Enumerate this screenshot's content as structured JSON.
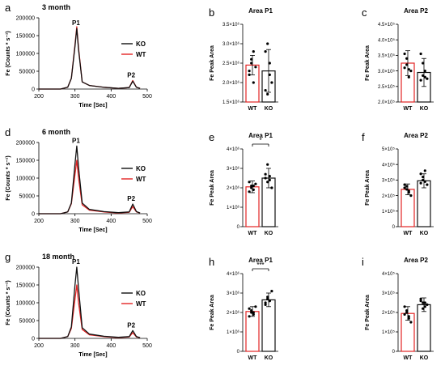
{
  "colors": {
    "wt": "#e32424",
    "ko": "#111111"
  },
  "chromatograms": {
    "xlabel": "Time [Sec]",
    "ylabel": "Fe (Counts * s⁻¹)",
    "xlim": [
      200,
      500
    ],
    "ylim": [
      0,
      200000
    ],
    "xticks": [
      "200",
      "300",
      "400",
      "500"
    ],
    "yticks": [
      "0",
      "50000",
      "100000",
      "150000",
      "200000"
    ],
    "peak_labels": [
      "P1",
      "P2"
    ],
    "legend": [
      "KO",
      "WT"
    ]
  },
  "bars": {
    "categories": [
      "WT",
      "KO"
    ],
    "ylabel": "Fe Peak Area"
  },
  "chart_data": [
    {
      "type": "line",
      "panel": "a",
      "title": "3 month",
      "x": [
        200,
        260,
        280,
        290,
        300,
        305,
        310,
        320,
        340,
        380,
        420,
        450,
        460,
        470,
        480
      ],
      "series": [
        {
          "name": "KO",
          "values": [
            0,
            0,
            5000,
            30000,
            120000,
            170000,
            110000,
            20000,
            10000,
            5000,
            2000,
            4000,
            22000,
            5000,
            2000
          ]
        },
        {
          "name": "WT",
          "values": [
            0,
            0,
            5000,
            30000,
            125000,
            175000,
            115000,
            20000,
            10000,
            5000,
            2000,
            4000,
            24000,
            5000,
            2000
          ]
        }
      ]
    },
    {
      "type": "bar",
      "panel": "b",
      "title": "Area P1",
      "categories": [
        "WT",
        "KO"
      ],
      "values": [
        2450000.0,
        2300000.0
      ],
      "errors": [
        250000.0,
        550000.0
      ],
      "ylim": [
        1500000.0,
        3500000.0
      ],
      "ytick_labels": [
        "1.5×10⁶",
        "2.0×10⁶",
        "2.5×10⁶",
        "3.0×10⁶",
        "3.5×10⁶"
      ],
      "points": [
        [
          2200000.0,
          2500000.0,
          2800000.0,
          2400000.0,
          2300000.0,
          2600000.0,
          2000000.0
        ],
        [
          2800000.0,
          3000000.0,
          2500000.0,
          2000000.0,
          1800000.0,
          1700000.0,
          2200000.0
        ]
      ]
    },
    {
      "type": "bar",
      "panel": "c",
      "title": "Area P2",
      "categories": [
        "WT",
        "KO"
      ],
      "values": [
        325000.0,
        295000.0
      ],
      "errors": [
        40000.0,
        45000.0
      ],
      "ylim": [
        200000.0,
        450000.0
      ],
      "ytick_labels": [
        "2.0×10⁵",
        "2.5×10⁵",
        "3.0×10⁵",
        "3.5×10⁵",
        "4.0×10⁵",
        "4.5×10⁵"
      ],
      "points": [
        [
          355000.0,
          340000.0,
          305000.0,
          300000.0,
          310000.0,
          320000.0,
          280000.0
        ],
        [
          355000.0,
          325000.0,
          300000.0,
          275000.0,
          270000.0,
          285000.0,
          280000.0
        ]
      ]
    },
    {
      "type": "line",
      "panel": "d",
      "title": "6 month",
      "x": [
        200,
        260,
        280,
        290,
        300,
        305,
        310,
        320,
        340,
        380,
        420,
        450,
        460,
        470,
        480
      ],
      "series": [
        {
          "name": "KO",
          "values": [
            0,
            0,
            5000,
            30000,
            140000,
            190000,
            130000,
            30000,
            12000,
            6000,
            3000,
            5000,
            27000,
            6000,
            2000
          ]
        },
        {
          "name": "WT",
          "values": [
            0,
            0,
            5000,
            28000,
            110000,
            150000,
            100000,
            25000,
            10000,
            5000,
            2000,
            4000,
            20000,
            5000,
            2000
          ]
        }
      ]
    },
    {
      "type": "bar",
      "panel": "e",
      "title": "Area P1",
      "categories": [
        "WT",
        "KO"
      ],
      "values": [
        2050000.0,
        2500000.0
      ],
      "errors": [
        300000.0,
        500000.0
      ],
      "ylim": [
        0,
        4000000.0
      ],
      "ytick_labels": [
        "0",
        "1×10⁶",
        "2×10⁶",
        "3×10⁶",
        "4×10⁶"
      ],
      "significance": "*",
      "points": [
        [
          2300000.0,
          2100000.0,
          1900000.0,
          2200000.0,
          1800000.0,
          2000000.0,
          2100000.0
        ],
        [
          2700000.0,
          3200000.0,
          2400000.0,
          2000000.0,
          2500000.0,
          2300000.0,
          2600000.0
        ]
      ]
    },
    {
      "type": "bar",
      "panel": "f",
      "title": "Area P2",
      "categories": [
        "WT",
        "KO"
      ],
      "values": [
        240000.0,
        295000.0
      ],
      "errors": [
        35000.0,
        45000.0
      ],
      "ylim": [
        0,
        500000.0
      ],
      "ytick_labels": [
        "0",
        "1×10⁵",
        "2×10⁵",
        "3×10⁵",
        "4×10⁵",
        "5×10⁵"
      ],
      "points": [
        [
          270000.0,
          240000.0,
          220000.0,
          200000.0,
          250000.0,
          260000.0,
          230000.0
        ],
        [
          340000.0,
          320000.0,
          290000.0,
          270000.0,
          280000.0,
          300000.0,
          360000.0
        ]
      ]
    },
    {
      "type": "line",
      "panel": "g",
      "title": "18 month",
      "x": [
        200,
        260,
        280,
        290,
        300,
        305,
        310,
        320,
        340,
        380,
        420,
        450,
        460,
        470,
        480
      ],
      "series": [
        {
          "name": "KO",
          "values": [
            0,
            0,
            5000,
            32000,
            150000,
            200000,
            140000,
            30000,
            12000,
            6000,
            3000,
            5000,
            22000,
            5000,
            2000
          ]
        },
        {
          "name": "WT",
          "values": [
            0,
            0,
            5000,
            28000,
            110000,
            150000,
            100000,
            25000,
            10000,
            5000,
            2000,
            4000,
            16000,
            4000,
            2000
          ]
        }
      ]
    },
    {
      "type": "bar",
      "panel": "h",
      "title": "Area P1",
      "categories": [
        "WT",
        "KO"
      ],
      "values": [
        2050000.0,
        2650000.0
      ],
      "errors": [
        250000.0,
        350000.0
      ],
      "ylim": [
        0,
        4000000.0
      ],
      "ytick_labels": [
        "0",
        "1×10⁶",
        "2×10⁶",
        "3×10⁶",
        "4×10⁶"
      ],
      "significance": "***",
      "points": [
        [
          2200000.0,
          2000000.0,
          1900000.0,
          2300000.0,
          1800000.0,
          2100000.0,
          2000000.0
        ],
        [
          2500000.0,
          2800000.0,
          2600000.0,
          3100000.0,
          2400000.0,
          2700000.0,
          2600000.0
        ]
      ]
    },
    {
      "type": "bar",
      "panel": "i",
      "title": "Area P2",
      "categories": [
        "WT",
        "KO"
      ],
      "values": [
        195000.0,
        240000.0
      ],
      "errors": [
        35000.0,
        35000.0
      ],
      "ylim": [
        0,
        400000.0
      ],
      "ytick_labels": [
        "0",
        "1×10⁵",
        "2×10⁵",
        "3×10⁵",
        "4×10⁵"
      ],
      "points": [
        [
          230000.0,
          210000.0,
          180000.0,
          150000.0,
          190000.0,
          200000.0,
          170000.0
        ],
        [
          270000.0,
          250000.0,
          230000.0,
          240000.0,
          260000.0,
          220000.0,
          250000.0
        ]
      ]
    }
  ]
}
